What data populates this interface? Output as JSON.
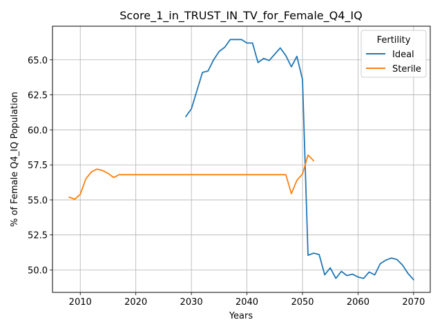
{
  "chart_data": {
    "type": "line",
    "title": "Score_1_in_TRUST_IN_TV_for_Female_Q4_IQ",
    "xlabel": "Years",
    "ylabel": "% of Female Q4_IQ Population",
    "xlim": [
      2005,
      2073
    ],
    "ylim": [
      48.4,
      67.4
    ],
    "xticks": [
      2010,
      2020,
      2030,
      2040,
      2050,
      2060,
      2070
    ],
    "yticks": [
      50.0,
      52.5,
      55.0,
      57.5,
      60.0,
      62.5,
      65.0
    ],
    "ytick_labels": [
      "50.0",
      "52.5",
      "55.0",
      "57.5",
      "60.0",
      "62.5",
      "65.0"
    ],
    "grid": true,
    "legend": {
      "title": "Fertility",
      "location": "top-right"
    },
    "series": [
      {
        "name": "Ideal",
        "color": "#1f77b4",
        "x": [
          2029,
          2030,
          2031,
          2032,
          2033,
          2034,
          2035,
          2036,
          2037,
          2038,
          2039,
          2040,
          2041,
          2042,
          2043,
          2044,
          2045,
          2046,
          2047,
          2048,
          2049,
          2050,
          2051,
          2052,
          2053,
          2054,
          2055,
          2056,
          2057,
          2058,
          2059,
          2060,
          2061,
          2062,
          2063,
          2064,
          2065,
          2066,
          2067,
          2068,
          2069,
          2070
        ],
        "values": [
          60.95,
          61.5,
          62.8,
          64.1,
          64.2,
          65.0,
          65.6,
          65.9,
          66.45,
          66.45,
          66.45,
          66.2,
          66.2,
          64.8,
          65.1,
          64.95,
          65.4,
          65.85,
          65.3,
          64.5,
          65.25,
          63.6,
          51.05,
          51.2,
          51.1,
          49.65,
          50.15,
          49.4,
          49.9,
          49.6,
          49.7,
          49.5,
          49.4,
          49.85,
          49.65,
          50.45,
          50.7,
          50.85,
          50.75,
          50.35,
          49.75,
          49.3
        ]
      },
      {
        "name": "Sterile",
        "color": "#ff7f0e",
        "x": [
          2008,
          2009,
          2010,
          2011,
          2012,
          2013,
          2014,
          2015,
          2016,
          2017,
          2018,
          2019,
          2020,
          2021,
          2022,
          2023,
          2024,
          2025,
          2026,
          2027,
          2028,
          2029,
          2030,
          2031,
          2032,
          2033,
          2034,
          2035,
          2036,
          2037,
          2038,
          2039,
          2040,
          2041,
          2042,
          2043,
          2044,
          2045,
          2046,
          2047,
          2048,
          2049,
          2050,
          2051,
          2052
        ],
        "values": [
          55.2,
          55.05,
          55.4,
          56.5,
          57.0,
          57.2,
          57.1,
          56.9,
          56.6,
          56.8,
          56.8,
          56.8,
          56.8,
          56.8,
          56.8,
          56.8,
          56.8,
          56.8,
          56.8,
          56.8,
          56.8,
          56.8,
          56.8,
          56.8,
          56.8,
          56.8,
          56.8,
          56.8,
          56.8,
          56.8,
          56.8,
          56.8,
          56.8,
          56.8,
          56.8,
          56.8,
          56.8,
          56.8,
          56.8,
          56.8,
          55.45,
          56.4,
          56.85,
          58.2,
          57.8
        ]
      }
    ]
  }
}
